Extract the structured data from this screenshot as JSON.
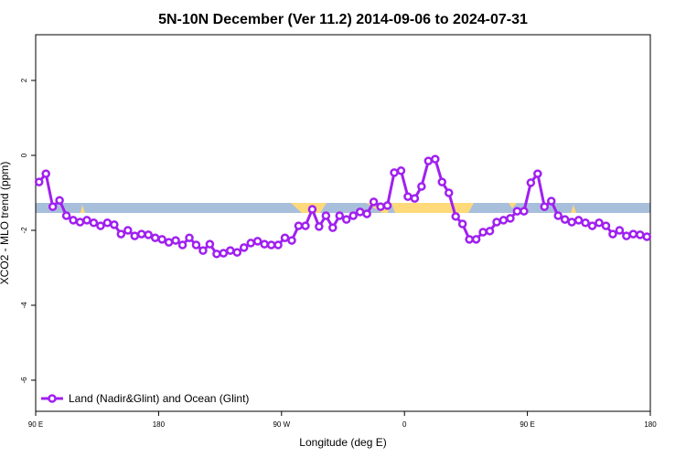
{
  "chart_data": {
    "type": "line",
    "title": "5N-10N December (Ver 11.2)   2014-09-06 to 2024-07-31",
    "x_label": "Longitude (deg E)",
    "y_label": "XCO2 - MLO trend (ppm)",
    "x": [
      92.5,
      97.5,
      102.5,
      107.5,
      112.5,
      117.5,
      122.5,
      127.5,
      132.5,
      137.5,
      142.5,
      147.5,
      152.5,
      157.5,
      162.5,
      167.5,
      172.5,
      177.5,
      182.5,
      187.5,
      192.5,
      197.5,
      202.5,
      207.5,
      212.5,
      217.5,
      222.5,
      227.5,
      232.5,
      237.5,
      242.5,
      247.5,
      252.5,
      257.5,
      262.5,
      267.5,
      272.5,
      277.5,
      282.5,
      287.5,
      292.5,
      297.5,
      302.5,
      307.5,
      312.5,
      317.5,
      322.5,
      327.5,
      332.5,
      337.5,
      342.5,
      347.5,
      352.5,
      357.5,
      362.5,
      367.5,
      372.5,
      377.5,
      382.5,
      387.5,
      392.5,
      397.5,
      402.5,
      407.5,
      412.5,
      417.5,
      422.5,
      427.5,
      432.5,
      437.5,
      442.5,
      447.5,
      452.5,
      457.5,
      462.5,
      467.5,
      472.5,
      477.5,
      482.5,
      487.5,
      492.5,
      497.5,
      502.5,
      507.5,
      512.5,
      517.5,
      522.5,
      527.5,
      532.5,
      537.5
    ],
    "series": [
      {
        "name": "Land (Nadir&Glint) and Ocean (Glint)",
        "color": "#a020f0",
        "values": [
          -0.71,
          -0.49,
          -1.37,
          -1.2,
          -1.61,
          -1.73,
          -1.78,
          -1.73,
          -1.8,
          -1.88,
          -1.8,
          -1.85,
          -2.1,
          -2.0,
          -2.15,
          -2.1,
          -2.12,
          -2.2,
          -2.24,
          -2.32,
          -2.27,
          -2.39,
          -2.2,
          -2.39,
          -2.54,
          -2.37,
          -2.63,
          -2.61,
          -2.54,
          -2.59,
          -2.46,
          -2.34,
          -2.29,
          -2.37,
          -2.39,
          -2.39,
          -2.2,
          -2.27,
          -1.88,
          -1.88,
          -1.44,
          -1.9,
          -1.61,
          -1.93,
          -1.61,
          -1.71,
          -1.61,
          -1.51,
          -1.56,
          -1.24,
          -1.37,
          -1.34,
          -0.46,
          -0.41,
          -1.1,
          -1.15,
          -0.83,
          -0.15,
          -0.1,
          -0.71,
          -1.0,
          -1.63,
          -1.83,
          -2.24,
          -2.24,
          -2.05,
          -2.02,
          -1.78,
          -1.73,
          -1.68,
          -1.49,
          -1.49,
          -0.73,
          -0.49,
          -1.37,
          -1.22,
          -1.61,
          -1.71,
          -1.78,
          -1.73,
          -1.8,
          -1.88,
          -1.8,
          -1.88,
          -2.1,
          -2.0,
          -2.15,
          -2.1,
          -2.12,
          -2.17
        ]
      }
    ],
    "xlim": [
      90,
      540
    ],
    "xticks": [
      {
        "value": 90,
        "label": "90 E"
      },
      180,
      {
        "value": 270,
        "label": "90 W"
      },
      {
        "value": 360,
        "label": "0"
      },
      {
        "value": 450,
        "label": "90 E"
      },
      {
        "value": 540,
        "label": "180"
      }
    ],
    "ylim": [
      -6.83,
      3.22
    ],
    "yticks": [
      2,
      0,
      -2,
      -4,
      -6
    ],
    "legend": "bottom-left"
  }
}
